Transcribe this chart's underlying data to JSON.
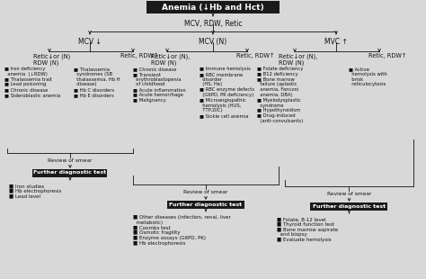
{
  "title": "Anemia (↓Hb and Hct)",
  "bg_color": "#d8d8d8",
  "title_bg": "#1a1a1a",
  "title_fg": "#ffffff",
  "box_bg": "#1a1a1a",
  "box_fg": "#ffffff",
  "level1_label": "MCV, RDW, Retic",
  "level2_labels": [
    "MCV ↓",
    "MCV (N)",
    "MVC ↑"
  ],
  "level3_labels": [
    "Retic↓or (N)\nRDW (N)",
    "Retic, RDW↑",
    "Retic↓or (N),\nRDW (N)",
    "Retic, RDW↑",
    "Retic↓or (N),\nRDW (N)",
    "Retic, RDW↑"
  ],
  "level3_lists": [
    "■ Iron deficiency\n  anemia  (↓RDW)\n■ Thalassemia trait\n■ Lead poisoning\n■ Chronic disease\n■ Sideroblastic anemia",
    "■ Thalassemia\n  syndromes (SB\n  thalassemia, Hb H\n  disease)\n■ Hb C disorders\n■ Hb E disorders",
    "■ Chronic disease\n■ Transient\n  erythroblastopenia\n  of childhood\n■ Acute inflammation\n■ Acute hemorrhage\n■ Malignancy",
    "■ Immune hemolysis\n■ RBC membrane\n  disorder\n  (HS, He)\n■ RBC enzyme defects\n  (G6PD, PK deficiency)\n■ Microangiopathic\n  hemolysis (HUS,\n  TTP,DIC)\n■ Sickle cell anemia",
    "■ Folate deficiency\n■ B12 deficiency\n■ Bone marrow\n  failure (aplastic\n  anemia, Fanconi\n  anemia, DBA)\n■ Myelodysplastic\n  syndrome\n■ Hypothyroidism\n■ Drug-induced\n  (anti-convulsants)",
    "■ Active\n  hemolysis with\n  brisk\n  reticulocytosis"
  ],
  "review_label": "Review of smear",
  "diag_label": "Further diagnostic test",
  "diag_lists": [
    "■ Iron studies\n■ Hb electrophoresis\n■ Lead level",
    "■ Other diseases (infection, renal, liver\n  metabolic)\n■ Coombs test\n■ Osmotic fragility\n■ Enzyme assays (G6PD, PK)\n■ Hb electrophoresis",
    "■ Folate, B-12 level\n■ Thyroid function test\n■ Bone marrow aspirate\n  and biopsy\n■ Evaluate hemolysis"
  ]
}
